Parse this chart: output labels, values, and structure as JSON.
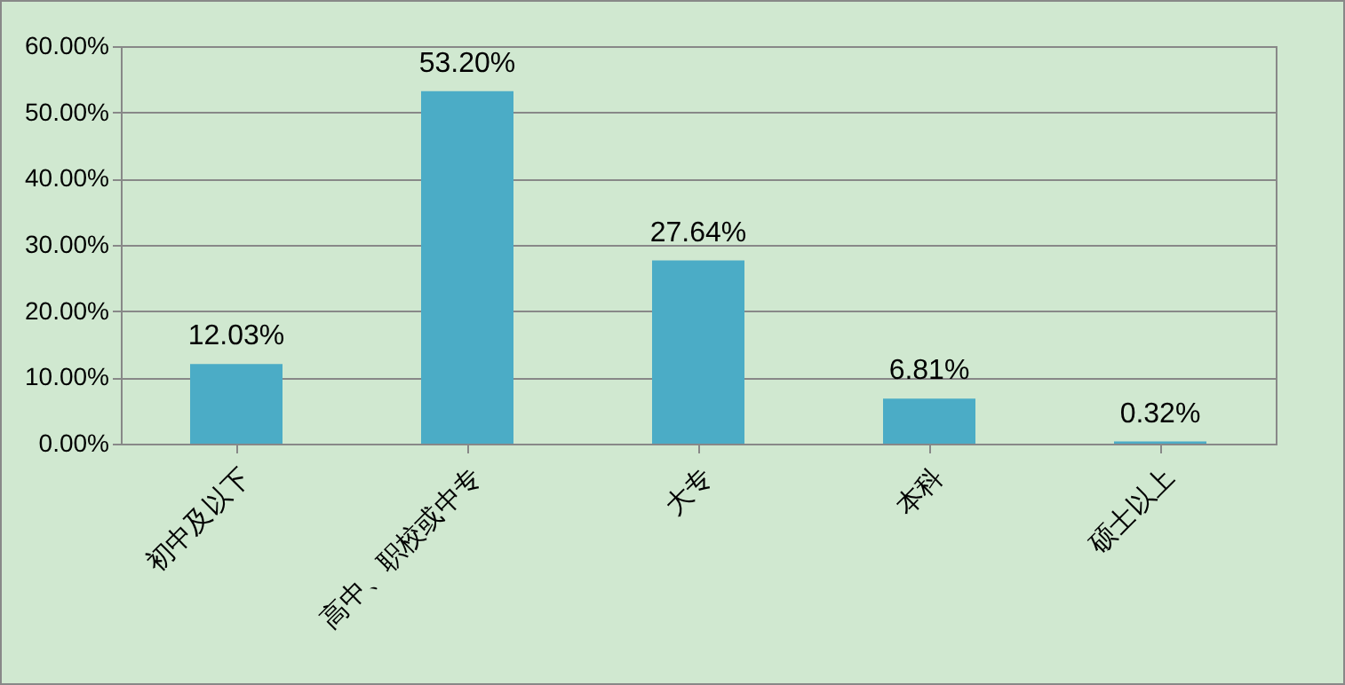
{
  "chart_data": {
    "type": "bar",
    "categories": [
      "初中及以下",
      "高中、职校或中专",
      "大专",
      "本科",
      "硕士以上"
    ],
    "values": [
      12.03,
      53.2,
      27.64,
      6.81,
      0.32
    ],
    "value_labels": [
      "12.03%",
      "53.20%",
      "27.64%",
      "6.81%",
      "0.32%"
    ],
    "color": "#4bacc6",
    "ylim": [
      0,
      60
    ],
    "yticks": [
      {
        "value": 0,
        "label": "0.00%"
      },
      {
        "value": 10,
        "label": "10.00%"
      },
      {
        "value": 20,
        "label": "20.00%"
      },
      {
        "value": 30,
        "label": "30.00%"
      },
      {
        "value": 40,
        "label": "40.00%"
      },
      {
        "value": 50,
        "label": "50.00%"
      },
      {
        "value": 60,
        "label": "60.00%"
      }
    ],
    "grid": "y"
  }
}
